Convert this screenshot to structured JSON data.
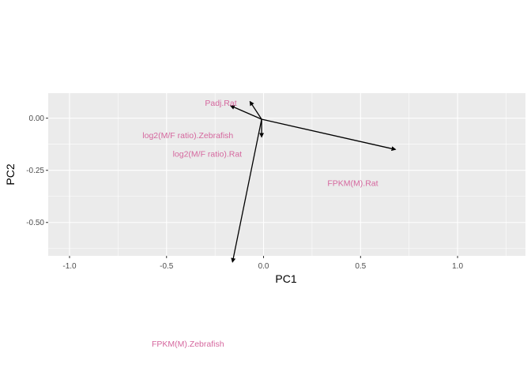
{
  "chart_data": {
    "type": "biplot",
    "xlabel": "PC1",
    "ylabel": "PC2",
    "xlim": [
      -1.11,
      1.35
    ],
    "ylim": [
      -0.66,
      0.12
    ],
    "x_ticks": [
      {
        "value": -1.0,
        "label": "-1.0"
      },
      {
        "value": -0.5,
        "label": "-0.5"
      },
      {
        "value": 0.0,
        "label": "0.0"
      },
      {
        "value": 0.5,
        "label": "0.5"
      },
      {
        "value": 1.0,
        "label": "1.0"
      }
    ],
    "y_ticks": [
      {
        "value": 0.0,
        "label": "0.00"
      },
      {
        "value": -0.25,
        "label": "-0.25"
      },
      {
        "value": -0.5,
        "label": "-0.50"
      }
    ],
    "grid": true,
    "panel_color": "#ebebeb",
    "arrow_color": "#000000",
    "label_color": "#d5679e",
    "vectors": [
      {
        "name": "Padj.Rat",
        "x0": -0.01,
        "y0": -0.005,
        "x1": -0.07,
        "y1": 0.08,
        "label_x": -0.22,
        "label_y": 0.075
      },
      {
        "name": "log2(M/F ratio).Zebrafish",
        "x0": -0.01,
        "y0": -0.005,
        "x1": -0.17,
        "y1": 0.06,
        "label_x": -0.39,
        "label_y": -0.08
      },
      {
        "name": "log2(M/F ratio).Rat",
        "x0": -0.01,
        "y0": -0.005,
        "x1": -0.01,
        "y1": -0.09,
        "label_x": -0.29,
        "label_y": -0.17
      },
      {
        "name": "FPKM(M).Rat",
        "x0": -0.01,
        "y0": -0.005,
        "x1": 0.68,
        "y1": -0.15,
        "label_x": 0.46,
        "label_y": -0.31
      },
      {
        "name": "FPKM(M).Zebrafish",
        "x0": -0.01,
        "y0": -0.005,
        "x1": -0.16,
        "y1": -0.69,
        "label_x": -0.39,
        "label_y": -1.08
      }
    ]
  }
}
